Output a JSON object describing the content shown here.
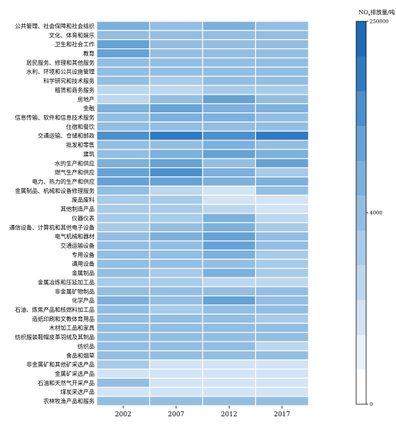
{
  "chart_data": {
    "type": "heatmap",
    "title": "",
    "xlabel": "",
    "ylabel": "",
    "x": [
      "2002",
      "2007",
      "2012",
      "2017"
    ],
    "y": [
      "公共管理、社会保障和社会组织",
      "文化、体育和娱乐",
      "卫生和社会工作",
      "教育",
      "居民服务、修理和其他服务",
      "水利、环境和公共设施管理",
      "科学研究和技术服务",
      "租赁和商务服务",
      "房地产",
      "金融",
      "信息传输、软件和信息技术服务",
      "住宿和餐饮",
      "交通运输、仓储和邮政",
      "批发和零售",
      "建筑",
      "水的生产和供应",
      "燃气生产和供应",
      "电力、热力的生产和供应",
      "金属制品、机械和设备修理服务",
      "废品废料",
      "其他制造产品",
      "仪器仪表",
      "通信设备、计算机和其他电子设备",
      "电气机械和器材",
      "交通运输设备",
      "专用设备",
      "通用设备",
      "金属制品",
      "金属冶炼和压延加工品",
      "非金属矿物制品",
      "化学产品",
      "石油、炼焦产品和核燃料加工品",
      "造纸印刷和文教体育用品",
      "木材加工品和家具",
      "纺织服装鞋帽皮革羽绒及其制品",
      "纺织品",
      "食品和烟草",
      "非金属矿和其他矿采选产品",
      "金属矿采选产品",
      "石油和天然气开采产品",
      "煤炭采选产品",
      "农林牧渔产品和服务"
    ],
    "values": [
      [
        6,
        5,
        6,
        5
      ],
      [
        5,
        5,
        5,
        5
      ],
      [
        7,
        5,
        5,
        5
      ],
      [
        7,
        5,
        5,
        5
      ],
      [
        5,
        5,
        5,
        5
      ],
      [
        5,
        5,
        5,
        5
      ],
      [
        5,
        4,
        5,
        5
      ],
      [
        3,
        3,
        4,
        4
      ],
      [
        3,
        5,
        7,
        5
      ],
      [
        6,
        7,
        6,
        6
      ],
      [
        5,
        6,
        6,
        5
      ],
      [
        5,
        5,
        5,
        5
      ],
      [
        8,
        9,
        8,
        9
      ],
      [
        5,
        5,
        6,
        5
      ],
      [
        5,
        6,
        7,
        6
      ],
      [
        6,
        7,
        5,
        7
      ],
      [
        7,
        8,
        6,
        4
      ],
      [
        7,
        7,
        6,
        6
      ],
      [
        5,
        3,
        2,
        5
      ],
      [
        4,
        4,
        2,
        2
      ],
      [
        4,
        4,
        3,
        2
      ],
      [
        4,
        4,
        6,
        3
      ],
      [
        4,
        5,
        6,
        4
      ],
      [
        5,
        6,
        7,
        5
      ],
      [
        5,
        5,
        7,
        5
      ],
      [
        5,
        5,
        6,
        4
      ],
      [
        5,
        5,
        5,
        4
      ],
      [
        5,
        4,
        6,
        4
      ],
      [
        4,
        4,
        3,
        3
      ],
      [
        5,
        5,
        5,
        5
      ],
      [
        6,
        5,
        7,
        5
      ],
      [
        5,
        4,
        5,
        5
      ],
      [
        5,
        5,
        5,
        4
      ],
      [
        5,
        5,
        5,
        5
      ],
      [
        5,
        5,
        5,
        5
      ],
      [
        5,
        5,
        5,
        3
      ],
      [
        5,
        5,
        5,
        5
      ],
      [
        4,
        2,
        2,
        2
      ],
      [
        2,
        2,
        2,
        2
      ],
      [
        5,
        2,
        2,
        2
      ],
      [
        2,
        2,
        2,
        2
      ],
      [
        5,
        5,
        5,
        5
      ]
    ],
    "value_scale": "binned levels 0-10 matching colorbar bands",
    "colorbar": {
      "title_base": "NO",
      "title_sub": "x",
      "title_rest": "排放量/吨",
      "ticks": [
        "0",
        "4000",
        "250000"
      ],
      "colors": [
        "#ffffff",
        "#eaf2fb",
        "#d3e4f4",
        "#bcd7ee",
        "#a7cbe8",
        "#93bee2",
        "#7db0dc",
        "#66a2d5",
        "#4b90cc",
        "#2f7bc0",
        "#1f6bb5"
      ]
    },
    "grid": false,
    "legend": "colorbar-right"
  }
}
